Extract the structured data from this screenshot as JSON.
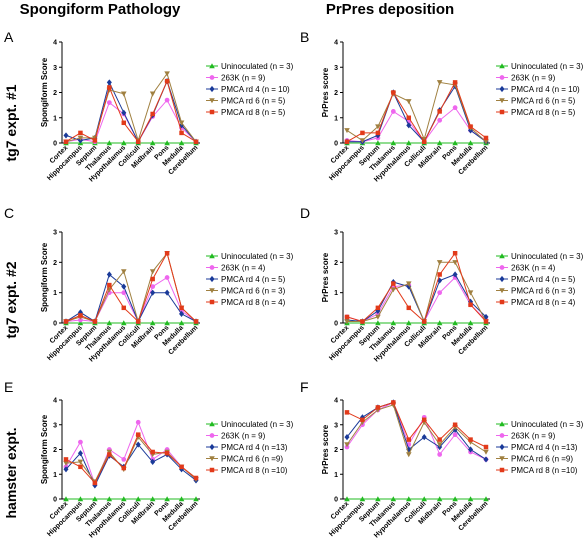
{
  "column_titles": [
    "Spongiform Pathology",
    "PrPres deposition"
  ],
  "row_titles": [
    "tg7 expt. #1",
    "tg7 expt. #2",
    "hamster expt."
  ],
  "series_colors": [
    "#22bb22",
    "#ee66ee",
    "#1a3a99",
    "#a08040",
    "#e23a1a"
  ],
  "series_markers": [
    "triangle-up",
    "circle",
    "diamond",
    "triangle-down",
    "square"
  ],
  "chart_data": [
    {
      "panel": "A",
      "type": "line",
      "ylabel": "Spongiform Score",
      "ylim": [
        0,
        4
      ],
      "yticks": [
        0,
        1,
        2,
        3,
        4
      ],
      "categories": [
        "Cortex",
        "Hippocampus",
        "Septum",
        "Thalamus",
        "Hypothalamus",
        "Colliculi",
        "Midbrain",
        "Pons",
        "Medulla",
        "Cerebellum"
      ],
      "legend": "right",
      "series": [
        {
          "name": "Uninoculated (n = 3)",
          "values": [
            0,
            0,
            0,
            0,
            0,
            0,
            0,
            0,
            0,
            0
          ]
        },
        {
          "name": "263K (n = 9)",
          "values": [
            0.05,
            0.15,
            0.05,
            1.6,
            1.15,
            0.05,
            1.05,
            1.7,
            0.6,
            0.05
          ]
        },
        {
          "name": "PMCA rd 4 (n = 10)",
          "values": [
            0.3,
            0.1,
            0.2,
            2.4,
            1.2,
            0.05,
            1.1,
            2.45,
            0.7,
            0.05
          ]
        },
        {
          "name": "PMCA rd 6 (n = 5)",
          "values": [
            0.05,
            0.2,
            0.2,
            2.1,
            1.95,
            0.1,
            1.95,
            2.75,
            0.8,
            0.05
          ]
        },
        {
          "name": "PMCA rd 8 (n = 5)",
          "values": [
            0.05,
            0.4,
            0.1,
            2.2,
            0.8,
            0.05,
            1.15,
            2.45,
            0.4,
            0.05
          ]
        }
      ]
    },
    {
      "panel": "B",
      "type": "line",
      "ylabel": "PrPres score",
      "ylim": [
        0,
        4
      ],
      "yticks": [
        0,
        1,
        2,
        3,
        4
      ],
      "categories": [
        "Cortex",
        "Hippocampus",
        "Septum",
        "Thalamus",
        "Hypothalamus",
        "Colliculi",
        "Midbrain",
        "Pons",
        "Medulla",
        "Cerebellum"
      ],
      "legend": "right",
      "series": [
        {
          "name": "Uninoculated (n = 3)",
          "values": [
            0,
            0,
            0,
            0,
            0,
            0,
            0,
            0,
            0,
            0
          ]
        },
        {
          "name": "263K (n = 9)",
          "values": [
            0.1,
            0.05,
            0.2,
            1.25,
            0.85,
            0.05,
            0.9,
            1.4,
            0.5,
            0.1
          ]
        },
        {
          "name": "PMCA rd 4 (n = 10)",
          "values": [
            0.05,
            0.05,
            0.3,
            2.0,
            0.7,
            0.05,
            1.3,
            2.25,
            0.5,
            0.05
          ]
        },
        {
          "name": "PMCA rd 6 (n = 5)",
          "values": [
            0.5,
            0.1,
            0.65,
            1.95,
            1.65,
            0.15,
            2.4,
            2.3,
            0.6,
            0.05
          ]
        },
        {
          "name": "PMCA rd 8 (n = 5)",
          "values": [
            0.05,
            0.4,
            0.4,
            2.0,
            1.0,
            0.05,
            1.25,
            2.4,
            0.65,
            0.2
          ]
        }
      ]
    },
    {
      "panel": "C",
      "type": "line",
      "ylabel": "Spongiform Score",
      "ylim": [
        0,
        3
      ],
      "yticks": [
        0,
        1,
        2,
        3
      ],
      "categories": [
        "Cortex",
        "Hippocampus",
        "Septum",
        "Thalamus",
        "Hypothalamus",
        "Colliculi",
        "Midbrain",
        "Pons",
        "Medulla",
        "Cerebellum"
      ],
      "legend": "right",
      "series": [
        {
          "name": "Uninoculated (n = 3)",
          "values": [
            0,
            0,
            0,
            0,
            0,
            0,
            0,
            0,
            0,
            0
          ]
        },
        {
          "name": "263K (n = 4)",
          "values": [
            0.05,
            0.1,
            0.05,
            1.0,
            1.0,
            0.05,
            1.2,
            1.5,
            0.4,
            0.05
          ]
        },
        {
          "name": "PMCA rd 4 (n = 5)",
          "values": [
            0.05,
            0.35,
            0.05,
            1.6,
            1.2,
            0.05,
            1.0,
            1.0,
            0.3,
            0.05
          ]
        },
        {
          "name": "PMCA rd 6 (n = 3)",
          "values": [
            0.05,
            0.2,
            0.05,
            1.1,
            1.7,
            0.05,
            1.7,
            2.3,
            0.5,
            0.05
          ]
        },
        {
          "name": "PMCA rd 8 (n = 4)",
          "values": [
            0.05,
            0.25,
            0.05,
            1.25,
            0.5,
            0.05,
            1.45,
            2.3,
            0.5,
            0.05
          ]
        }
      ]
    },
    {
      "panel": "D",
      "type": "line",
      "ylabel": "PrPres score",
      "ylim": [
        0,
        3
      ],
      "yticks": [
        0,
        1,
        2,
        3
      ],
      "categories": [
        "Cortex",
        "Hippocampus",
        "Septum",
        "Thalamus",
        "Hypothalamus",
        "Colliculi",
        "Midbrain",
        "Pons",
        "Medulla",
        "Cerebellum"
      ],
      "legend": "right",
      "series": [
        {
          "name": "Uninoculated (n = 3)",
          "values": [
            0,
            0,
            0,
            0,
            0,
            0,
            0,
            0,
            0,
            0
          ]
        },
        {
          "name": "263K (n = 4)",
          "values": [
            0.2,
            0.05,
            0.3,
            1.2,
            1.25,
            0.05,
            1.0,
            1.5,
            0.6,
            0.1
          ]
        },
        {
          "name": "PMCA rd 4 (n = 5)",
          "values": [
            0.1,
            0.05,
            0.4,
            1.35,
            1.2,
            0.05,
            1.4,
            1.6,
            0.7,
            0.2
          ]
        },
        {
          "name": "PMCA rd 6 (n = 3)",
          "values": [
            0.05,
            0.05,
            0.2,
            1.1,
            1.3,
            0.05,
            2.0,
            2.0,
            1.0,
            0.05
          ]
        },
        {
          "name": "PMCA rd 8 (n = 4)",
          "values": [
            0.2,
            0.05,
            0.5,
            1.3,
            0.5,
            0.05,
            1.6,
            2.3,
            0.6,
            0.05
          ]
        }
      ]
    },
    {
      "panel": "E",
      "type": "line",
      "ylabel": "Spongiform Score",
      "ylim": [
        0,
        4
      ],
      "yticks": [
        0,
        1,
        2,
        3,
        4
      ],
      "categories": [
        "Cortex",
        "Hippocampus",
        "Septum",
        "Thalamus",
        "Hypothalamus",
        "Colliculi",
        "Midbrain",
        "Pons",
        "Medulla",
        "Cerebellum"
      ],
      "legend": "right",
      "series": [
        {
          "name": "Uninoculated (n = 3)",
          "values": [
            0,
            0,
            0,
            0,
            0,
            0,
            0,
            0,
            0,
            0
          ]
        },
        {
          "name": "263K (n = 9)",
          "values": [
            1.3,
            2.3,
            0.6,
            2.0,
            1.6,
            3.1,
            1.6,
            2.0,
            1.3,
            0.8
          ]
        },
        {
          "name": "PMCA rd 4 (n =13)",
          "values": [
            1.2,
            1.85,
            0.55,
            1.75,
            1.3,
            2.2,
            1.5,
            1.8,
            1.2,
            0.75
          ]
        },
        {
          "name": "PMCA rd 6 (n =9)",
          "values": [
            1.45,
            1.5,
            0.7,
            1.9,
            1.2,
            2.5,
            1.8,
            1.9,
            1.3,
            0.8
          ]
        },
        {
          "name": "PMCA rd 8 (n =10)",
          "values": [
            1.6,
            1.3,
            0.65,
            1.8,
            1.25,
            2.6,
            1.9,
            1.85,
            1.3,
            0.85
          ]
        }
      ]
    },
    {
      "panel": "F",
      "type": "line",
      "ylabel": "PrPres score",
      "ylim": [
        0,
        4
      ],
      "yticks": [
        0,
        1,
        2,
        3,
        4
      ],
      "categories": [
        "Cortex",
        "Hippocampus",
        "Septum",
        "Thalamus",
        "Hypothalamus",
        "Colliculi",
        "Midbrain",
        "Pons",
        "Medulla",
        "Cerebellum"
      ],
      "legend": "right",
      "series": [
        {
          "name": "Uninoculated (n = 3)",
          "values": [
            0,
            0,
            0,
            0,
            0,
            0,
            0,
            0,
            0,
            0
          ]
        },
        {
          "name": "263K (n = 9)",
          "values": [
            2.1,
            3.0,
            3.6,
            3.9,
            2.2,
            3.3,
            1.8,
            2.6,
            1.9,
            1.6
          ]
        },
        {
          "name": "PMCA rd 4 (n =13)",
          "values": [
            2.5,
            3.3,
            3.7,
            3.9,
            2.0,
            2.5,
            2.1,
            2.8,
            2.0,
            1.6
          ]
        },
        {
          "name": "PMCA rd 6 (n =9)",
          "values": [
            2.2,
            3.1,
            3.6,
            3.8,
            1.8,
            3.1,
            2.2,
            2.9,
            2.3,
            1.9
          ]
        },
        {
          "name": "PMCA rd 8 (n =10)",
          "values": [
            3.5,
            3.2,
            3.7,
            3.9,
            2.4,
            3.2,
            2.4,
            3.0,
            2.4,
            2.1
          ]
        }
      ]
    }
  ]
}
